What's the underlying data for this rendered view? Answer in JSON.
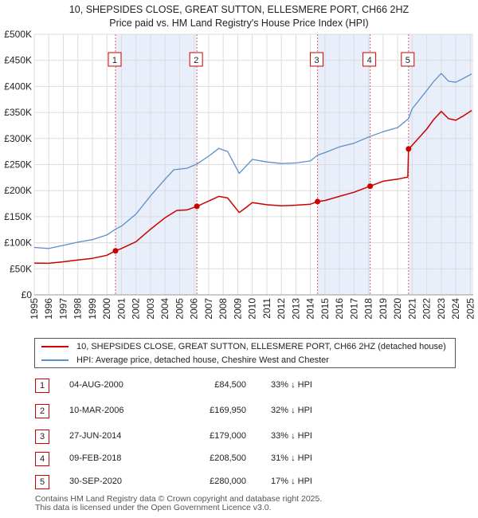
{
  "chart_data": {
    "type": "line",
    "title": "10, SHEPSIDES CLOSE, GREAT SUTTON, ELLESMERE PORT, CH66 2HZ",
    "subtitle": "Price paid vs. HM Land Registry's House Price Index (HPI)",
    "xlim": [
      1995,
      2025.2
    ],
    "ylim": [
      0,
      500000
    ],
    "y_ticks": [
      {
        "value": 0,
        "label": "£0"
      },
      {
        "value": 50000,
        "label": "£50K"
      },
      {
        "value": 100000,
        "label": "£100K"
      },
      {
        "value": 150000,
        "label": "£150K"
      },
      {
        "value": 200000,
        "label": "£200K"
      },
      {
        "value": 250000,
        "label": "£250K"
      },
      {
        "value": 300000,
        "label": "£300K"
      },
      {
        "value": 350000,
        "label": "£350K"
      },
      {
        "value": 400000,
        "label": "£400K"
      },
      {
        "value": 450000,
        "label": "£450K"
      },
      {
        "value": 500000,
        "label": "£500K"
      }
    ],
    "x_ticks": [
      "1995",
      "1996",
      "1997",
      "1998",
      "1999",
      "2000",
      "2001",
      "2002",
      "2003",
      "2004",
      "2005",
      "2006",
      "2007",
      "2008",
      "2009",
      "2010",
      "2011",
      "2012",
      "2013",
      "2014",
      "2015",
      "2016",
      "2017",
      "2018",
      "2019",
      "2020",
      "2021",
      "2022",
      "2023",
      "2024",
      "2025"
    ],
    "shaded_periods": [
      [
        2000.59,
        2006.19
      ],
      [
        2014.49,
        2018.11
      ],
      [
        2020.75,
        2025.2
      ]
    ],
    "series": [
      {
        "name": "10, SHEPSIDES CLOSE, GREAT SUTTON, ELLESMERE PORT, CH66 2HZ (detached house)",
        "color": "#cc0000",
        "points": [
          [
            1995,
            61000
          ],
          [
            1996,
            60500
          ],
          [
            1997,
            63500
          ],
          [
            1998,
            67000
          ],
          [
            1999,
            70000
          ],
          [
            2000,
            76000
          ],
          [
            2000.59,
            84500
          ],
          [
            2001,
            89000
          ],
          [
            2002,
            102000
          ],
          [
            2003,
            126000
          ],
          [
            2004,
            148000
          ],
          [
            2004.8,
            162000
          ],
          [
            2005.5,
            163000
          ],
          [
            2006.19,
            169950
          ],
          [
            2007,
            180000
          ],
          [
            2007.7,
            189000
          ],
          [
            2008.3,
            186000
          ],
          [
            2009.1,
            158000
          ],
          [
            2009.5,
            166000
          ],
          [
            2010,
            177000
          ],
          [
            2011,
            173000
          ],
          [
            2012,
            171000
          ],
          [
            2013,
            172000
          ],
          [
            2014,
            174000
          ],
          [
            2014.49,
            179000
          ],
          [
            2015,
            181000
          ],
          [
            2016,
            189000
          ],
          [
            2017,
            197000
          ],
          [
            2018.11,
            208500
          ],
          [
            2019,
            218000
          ],
          [
            2020,
            222000
          ],
          [
            2020.7,
            226000
          ],
          [
            2020.75,
            280000
          ],
          [
            2021,
            287000
          ],
          [
            2022,
            318000
          ],
          [
            2022.5,
            337000
          ],
          [
            2023,
            352000
          ],
          [
            2023.5,
            338000
          ],
          [
            2024,
            335000
          ],
          [
            2024.5,
            343000
          ],
          [
            2025.1,
            354000
          ]
        ]
      },
      {
        "name": "HPI: Average price, detached house, Cheshire West and Chester",
        "color": "#5b8fc9",
        "points": [
          [
            1995,
            91000
          ],
          [
            1996,
            89000
          ],
          [
            1997,
            95000
          ],
          [
            1998,
            101000
          ],
          [
            1999,
            106000
          ],
          [
            2000,
            115000
          ],
          [
            2000.59,
            126000
          ],
          [
            2001,
            132000
          ],
          [
            2002,
            155000
          ],
          [
            2003,
            190000
          ],
          [
            2004,
            222000
          ],
          [
            2004.6,
            240000
          ],
          [
            2005.5,
            243000
          ],
          [
            2006.19,
            251000
          ],
          [
            2007,
            266000
          ],
          [
            2007.7,
            281000
          ],
          [
            2008.3,
            275000
          ],
          [
            2009.1,
            233000
          ],
          [
            2009.5,
            245000
          ],
          [
            2010,
            260000
          ],
          [
            2011,
            255000
          ],
          [
            2012,
            252000
          ],
          [
            2013,
            253000
          ],
          [
            2014,
            257000
          ],
          [
            2014.49,
            268000
          ],
          [
            2015,
            273000
          ],
          [
            2016,
            284000
          ],
          [
            2017,
            291000
          ],
          [
            2018.11,
            304000
          ],
          [
            2019,
            313000
          ],
          [
            2020,
            321000
          ],
          [
            2020.75,
            338000
          ],
          [
            2021,
            357000
          ],
          [
            2022,
            392000
          ],
          [
            2022.5,
            410000
          ],
          [
            2023,
            425000
          ],
          [
            2023.5,
            410000
          ],
          [
            2024,
            408000
          ],
          [
            2024.5,
            415000
          ],
          [
            2025.1,
            424000
          ]
        ]
      }
    ],
    "markers": [
      {
        "n": "1",
        "x": 2000.59,
        "y": 84500
      },
      {
        "n": "2",
        "x": 2006.19,
        "y": 169950
      },
      {
        "n": "3",
        "x": 2014.49,
        "y": 179000
      },
      {
        "n": "4",
        "x": 2018.11,
        "y": 208500
      },
      {
        "n": "5",
        "x": 2020.75,
        "y": 280000
      }
    ]
  },
  "legend": {
    "red_label": "10, SHEPSIDES CLOSE, GREAT SUTTON, ELLESMERE PORT, CH66 2HZ (detached house)",
    "blue_label": "HPI: Average price, detached house, Cheshire West and Chester"
  },
  "transactions": [
    {
      "n": "1",
      "date": "04-AUG-2000",
      "price": "£84,500",
      "hpi": "33% ↓ HPI"
    },
    {
      "n": "2",
      "date": "10-MAR-2006",
      "price": "£169,950",
      "hpi": "32% ↓ HPI"
    },
    {
      "n": "3",
      "date": "27-JUN-2014",
      "price": "£179,000",
      "hpi": "33% ↓ HPI"
    },
    {
      "n": "4",
      "date": "09-FEB-2018",
      "price": "£208,500",
      "hpi": "31% ↓ HPI"
    },
    {
      "n": "5",
      "date": "30-SEP-2020",
      "price": "£280,000",
      "hpi": "17% ↓ HPI"
    }
  ],
  "footer": {
    "line1": "Contains HM Land Registry data © Crown copyright and database right 2025.",
    "line2": "This data is licensed under the Open Government Licence v3.0."
  }
}
